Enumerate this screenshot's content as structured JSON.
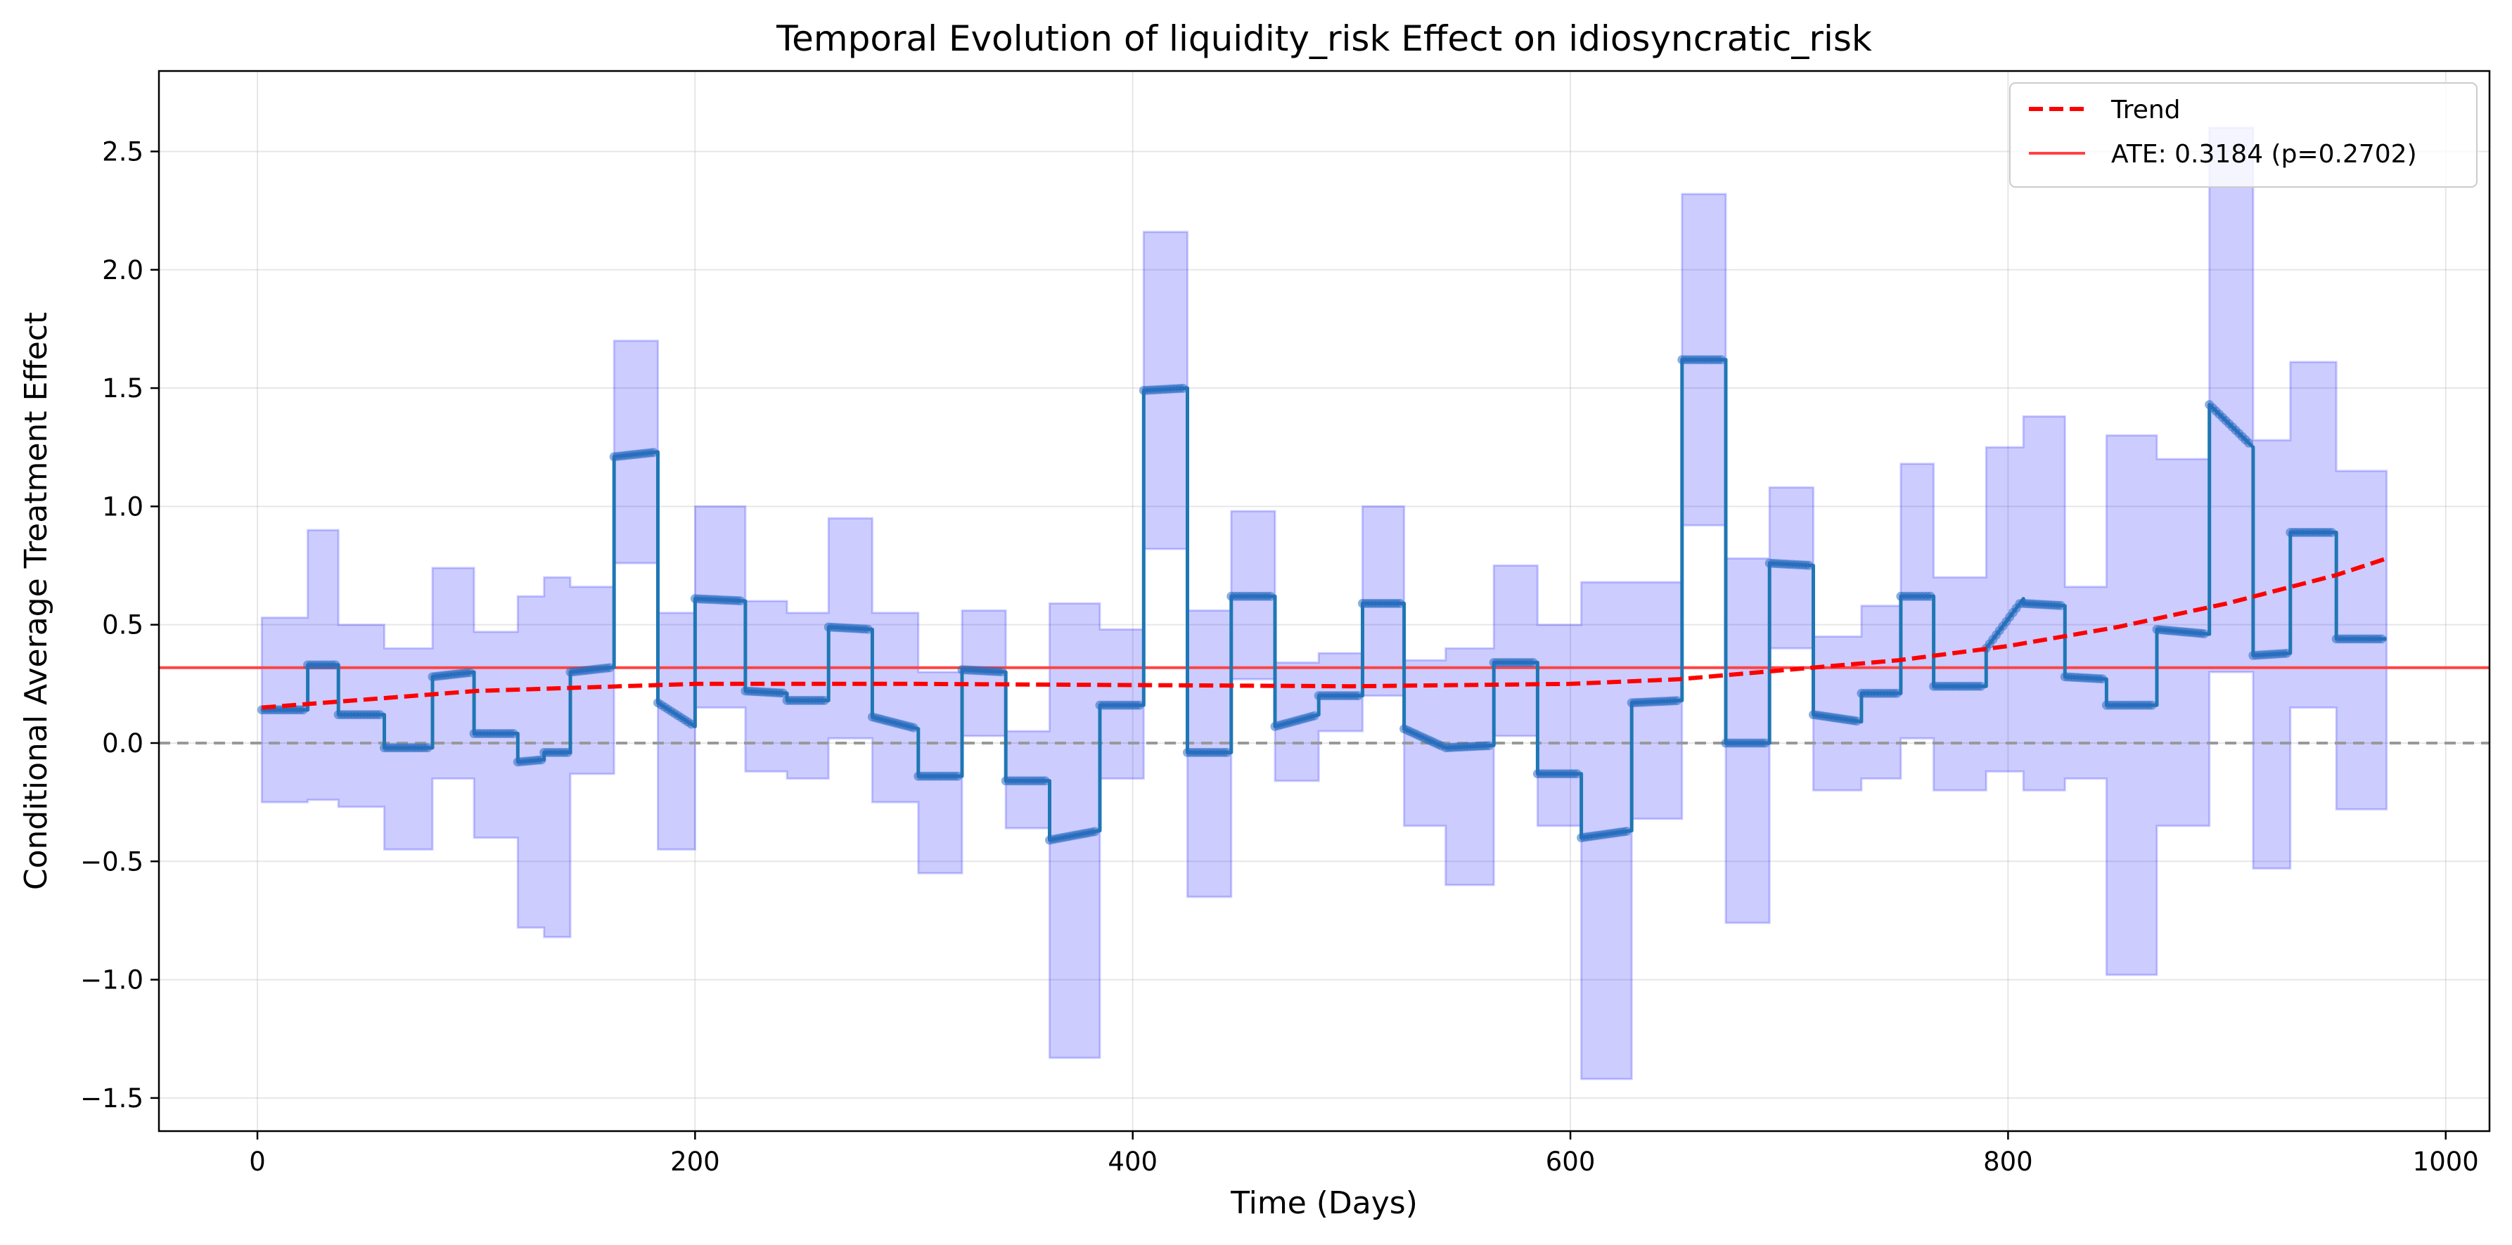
{
  "chart_data": {
    "type": "line",
    "title": "Temporal Evolution of liquidity_risk Effect on idiosyncratic_risk",
    "xlabel": "Time (Days)",
    "ylabel": "Conditional Average Treatment Effect",
    "xlim": [
      -45,
      1020
    ],
    "ylim": [
      -1.64,
      2.84
    ],
    "xticks": [
      0,
      200,
      400,
      600,
      800,
      1000
    ],
    "yticks": [
      -1.5,
      -1.0,
      -0.5,
      0.0,
      0.5,
      1.0,
      1.5,
      2.0,
      2.5
    ],
    "grid": true,
    "legend_position": "top-right",
    "legend": [
      {
        "label": "Trend",
        "style": "dashed",
        "color": "#ff0000"
      },
      {
        "label": "ATE: 0.3184 (p=0.2702)",
        "style": "solid",
        "color": "#ff4444"
      }
    ],
    "ate": 0.3184,
    "colors": {
      "cate": "#1f77b4",
      "points": "#2a6ebf",
      "band": "#0000ff",
      "trend": "#ff0000",
      "ate": "#ff4444",
      "zero": "#999999"
    },
    "segments": [
      {
        "x0": 2,
        "x1": 23,
        "y0": 0.14,
        "y1": 0.14,
        "lo": -0.25,
        "hi": 0.53
      },
      {
        "x0": 23,
        "x1": 37,
        "y0": 0.33,
        "y1": 0.33,
        "lo": -0.24,
        "hi": 0.9
      },
      {
        "x0": 37,
        "x1": 58,
        "y0": 0.12,
        "y1": 0.12,
        "lo": -0.27,
        "hi": 0.5
      },
      {
        "x0": 58,
        "x1": 80,
        "y0": -0.02,
        "y1": -0.02,
        "lo": -0.45,
        "hi": 0.4
      },
      {
        "x0": 80,
        "x1": 99,
        "y0": 0.28,
        "y1": 0.3,
        "lo": -0.15,
        "hi": 0.74
      },
      {
        "x0": 99,
        "x1": 119,
        "y0": 0.04,
        "y1": 0.04,
        "lo": -0.4,
        "hi": 0.47
      },
      {
        "x0": 119,
        "x1": 131,
        "y0": -0.08,
        "y1": -0.07,
        "lo": -0.78,
        "hi": 0.62
      },
      {
        "x0": 131,
        "x1": 143,
        "y0": -0.04,
        "y1": -0.04,
        "lo": -0.82,
        "hi": 0.7
      },
      {
        "x0": 143,
        "x1": 163,
        "y0": 0.3,
        "y1": 0.32,
        "lo": -0.13,
        "hi": 0.66
      },
      {
        "x0": 163,
        "x1": 183,
        "y0": 1.21,
        "y1": 1.23,
        "lo": 0.76,
        "hi": 1.7
      },
      {
        "x0": 183,
        "x1": 200,
        "y0": 0.17,
        "y1": 0.07,
        "lo": -0.45,
        "hi": 0.55
      },
      {
        "x0": 200,
        "x1": 223,
        "y0": 0.61,
        "y1": 0.6,
        "lo": 0.15,
        "hi": 1.0
      },
      {
        "x0": 223,
        "x1": 242,
        "y0": 0.22,
        "y1": 0.21,
        "lo": -0.12,
        "hi": 0.6
      },
      {
        "x0": 242,
        "x1": 261,
        "y0": 0.18,
        "y1": 0.18,
        "lo": -0.15,
        "hi": 0.55
      },
      {
        "x0": 261,
        "x1": 281,
        "y0": 0.49,
        "y1": 0.48,
        "lo": 0.02,
        "hi": 0.95
      },
      {
        "x0": 281,
        "x1": 302,
        "y0": 0.11,
        "y1": 0.06,
        "lo": -0.25,
        "hi": 0.55
      },
      {
        "x0": 302,
        "x1": 322,
        "y0": -0.14,
        "y1": -0.14,
        "lo": -0.55,
        "hi": 0.3
      },
      {
        "x0": 322,
        "x1": 342,
        "y0": 0.31,
        "y1": 0.3,
        "lo": 0.03,
        "hi": 0.56
      },
      {
        "x0": 342,
        "x1": 362,
        "y0": -0.16,
        "y1": -0.16,
        "lo": -0.36,
        "hi": 0.05
      },
      {
        "x0": 362,
        "x1": 385,
        "y0": -0.41,
        "y1": -0.37,
        "lo": -1.33,
        "hi": 0.59
      },
      {
        "x0": 385,
        "x1": 405,
        "y0": 0.16,
        "y1": 0.16,
        "lo": -0.15,
        "hi": 0.48
      },
      {
        "x0": 405,
        "x1": 425,
        "y0": 1.49,
        "y1": 1.5,
        "lo": 0.82,
        "hi": 2.16
      },
      {
        "x0": 425,
        "x1": 445,
        "y0": -0.04,
        "y1": -0.04,
        "lo": -0.65,
        "hi": 0.56
      },
      {
        "x0": 445,
        "x1": 465,
        "y0": 0.62,
        "y1": 0.62,
        "lo": 0.27,
        "hi": 0.98
      },
      {
        "x0": 465,
        "x1": 485,
        "y0": 0.07,
        "y1": 0.12,
        "lo": -0.16,
        "hi": 0.34
      },
      {
        "x0": 485,
        "x1": 505,
        "y0": 0.2,
        "y1": 0.2,
        "lo": 0.05,
        "hi": 0.38
      },
      {
        "x0": 505,
        "x1": 524,
        "y0": 0.59,
        "y1": 0.59,
        "lo": 0.2,
        "hi": 1.0
      },
      {
        "x0": 524,
        "x1": 543,
        "y0": 0.06,
        "y1": -0.02,
        "lo": -0.35,
        "hi": 0.35
      },
      {
        "x0": 543,
        "x1": 565,
        "y0": -0.02,
        "y1": -0.01,
        "lo": -0.6,
        "hi": 0.4
      },
      {
        "x0": 565,
        "x1": 585,
        "y0": 0.34,
        "y1": 0.34,
        "lo": 0.03,
        "hi": 0.75
      },
      {
        "x0": 585,
        "x1": 605,
        "y0": -0.13,
        "y1": -0.13,
        "lo": -0.35,
        "hi": 0.5
      },
      {
        "x0": 605,
        "x1": 628,
        "y0": -0.4,
        "y1": -0.37,
        "lo": -1.42,
        "hi": 0.68
      },
      {
        "x0": 628,
        "x1": 651,
        "y0": 0.17,
        "y1": 0.18,
        "lo": -0.32,
        "hi": 0.68
      },
      {
        "x0": 651,
        "x1": 671,
        "y0": 1.62,
        "y1": 1.62,
        "lo": 0.92,
        "hi": 2.32
      },
      {
        "x0": 671,
        "x1": 691,
        "y0": 0.0,
        "y1": 0.0,
        "lo": -0.76,
        "hi": 0.78
      },
      {
        "x0": 691,
        "x1": 711,
        "y0": 0.76,
        "y1": 0.75,
        "lo": 0.4,
        "hi": 1.08
      },
      {
        "x0": 711,
        "x1": 733,
        "y0": 0.12,
        "y1": 0.09,
        "lo": -0.2,
        "hi": 0.45
      },
      {
        "x0": 733,
        "x1": 751,
        "y0": 0.21,
        "y1": 0.21,
        "lo": -0.15,
        "hi": 0.58
      },
      {
        "x0": 751,
        "x1": 766,
        "y0": 0.62,
        "y1": 0.62,
        "lo": 0.02,
        "hi": 1.18
      },
      {
        "x0": 766,
        "x1": 790,
        "y0": 0.24,
        "y1": 0.24,
        "lo": -0.2,
        "hi": 0.7
      },
      {
        "x0": 790,
        "x1": 807,
        "y0": 0.4,
        "y1": 0.61,
        "lo": -0.12,
        "hi": 1.25
      },
      {
        "x0": 807,
        "x1": 826,
        "y0": 0.59,
        "y1": 0.58,
        "lo": -0.2,
        "hi": 1.38
      },
      {
        "x0": 826,
        "x1": 845,
        "y0": 0.28,
        "y1": 0.27,
        "lo": -0.15,
        "hi": 0.66
      },
      {
        "x0": 845,
        "x1": 868,
        "y0": 0.16,
        "y1": 0.16,
        "lo": -0.98,
        "hi": 1.3
      },
      {
        "x0": 868,
        "x1": 892,
        "y0": 0.48,
        "y1": 0.46,
        "lo": -0.35,
        "hi": 1.2
      },
      {
        "x0": 892,
        "x1": 912,
        "y0": 1.43,
        "y1": 1.25,
        "lo": 0.3,
        "hi": 2.6
      },
      {
        "x0": 912,
        "x1": 929,
        "y0": 0.37,
        "y1": 0.38,
        "lo": -0.53,
        "hi": 1.28
      },
      {
        "x0": 929,
        "x1": 950,
        "y0": 0.89,
        "y1": 0.89,
        "lo": 0.15,
        "hi": 1.61
      },
      {
        "x0": 950,
        "x1": 973,
        "y0": 0.44,
        "y1": 0.44,
        "lo": -0.28,
        "hi": 1.15
      }
    ],
    "trend": {
      "x": [
        2,
        100,
        200,
        300,
        400,
        500,
        600,
        650,
        700,
        750,
        800,
        850,
        900,
        950,
        973
      ],
      "y": [
        0.15,
        0.22,
        0.25,
        0.25,
        0.245,
        0.24,
        0.25,
        0.27,
        0.31,
        0.35,
        0.41,
        0.49,
        0.59,
        0.71,
        0.78
      ]
    }
  }
}
